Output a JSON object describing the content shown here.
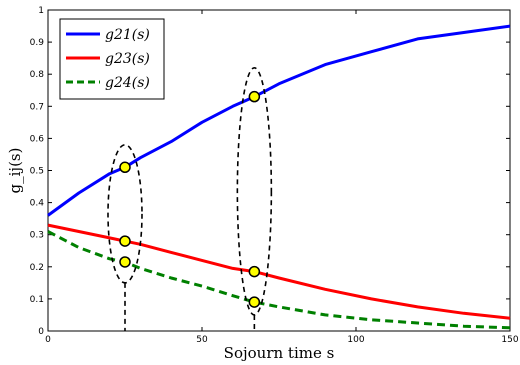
{
  "chart_data": {
    "type": "line",
    "title": "",
    "xlabel": "Sojourn time s",
    "ylabel": "g_ij(s)",
    "xlim": [
      0,
      150
    ],
    "ylim": [
      0,
      1
    ],
    "xticks": [
      0,
      50,
      100,
      150
    ],
    "yticks": [
      0,
      0.1,
      0.2,
      0.3,
      0.4,
      0.5,
      0.6,
      0.7,
      0.8,
      0.9,
      1
    ],
    "grid": false,
    "legend_position": "top-left",
    "series": [
      {
        "name": "g21(s)",
        "color": "#0000ff",
        "dash": "solid",
        "x": [
          0,
          10,
          20,
          25,
          30,
          40,
          50,
          60,
          67,
          75,
          90,
          105,
          120,
          135,
          150
        ],
        "y": [
          0.36,
          0.43,
          0.49,
          0.51,
          0.54,
          0.59,
          0.65,
          0.7,
          0.73,
          0.77,
          0.83,
          0.87,
          0.91,
          0.93,
          0.95
        ]
      },
      {
        "name": "g23(s)",
        "color": "#ff0000",
        "dash": "solid",
        "x": [
          0,
          10,
          20,
          25,
          30,
          40,
          50,
          60,
          67,
          75,
          90,
          105,
          120,
          135,
          150
        ],
        "y": [
          0.33,
          0.31,
          0.29,
          0.28,
          0.27,
          0.245,
          0.22,
          0.195,
          0.185,
          0.165,
          0.13,
          0.1,
          0.075,
          0.055,
          0.04
        ]
      },
      {
        "name": "g24(s)",
        "color": "#008000",
        "dash": "dashed",
        "x": [
          0,
          10,
          20,
          25,
          30,
          40,
          50,
          60,
          67,
          75,
          90,
          105,
          120,
          135,
          150
        ],
        "y": [
          0.31,
          0.26,
          0.225,
          0.215,
          0.195,
          0.165,
          0.14,
          0.11,
          0.09,
          0.075,
          0.05,
          0.035,
          0.025,
          0.015,
          0.01
        ]
      }
    ],
    "markers": [
      {
        "x": 25,
        "y": 0.51
      },
      {
        "x": 25,
        "y": 0.28
      },
      {
        "x": 25,
        "y": 0.215
      },
      {
        "x": 67,
        "y": 0.73
      },
      {
        "x": 67,
        "y": 0.185
      },
      {
        "x": 67,
        "y": 0.09
      }
    ],
    "marker_color": "#ffff00",
    "annotations": [
      {
        "shape": "dashed-ellipse",
        "x": 25,
        "y_range": [
          0.15,
          0.58
        ]
      },
      {
        "shape": "dashed-ellipse",
        "x": 67,
        "y_range": [
          0.05,
          0.82
        ]
      }
    ]
  }
}
